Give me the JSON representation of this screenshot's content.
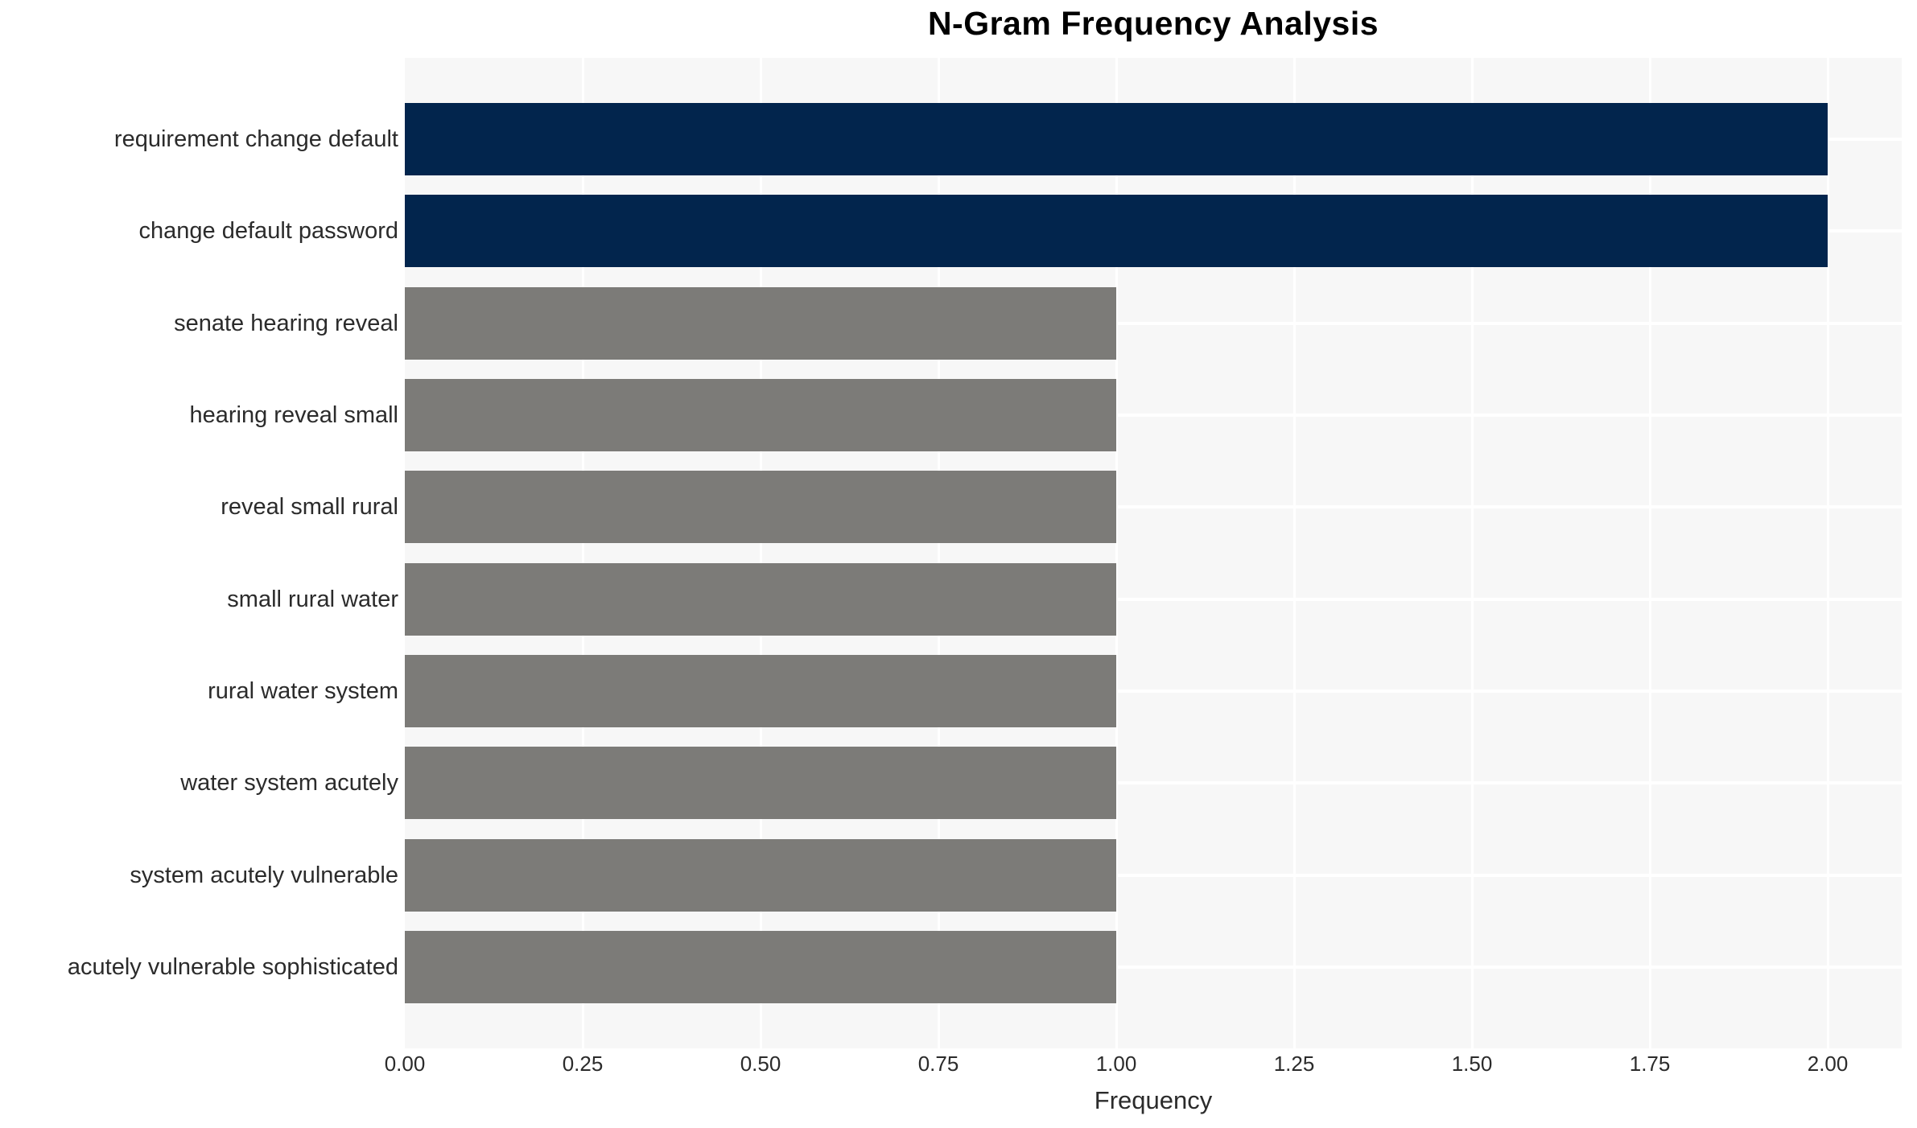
{
  "chart_data": {
    "type": "bar",
    "orientation": "horizontal",
    "title": "N-Gram Frequency Analysis",
    "xlabel": "Frequency",
    "ylabel": "",
    "categories": [
      "requirement change default",
      "change default password",
      "senate hearing reveal",
      "hearing reveal small",
      "reveal small rural",
      "small rural water",
      "rural water system",
      "water system acutely",
      "system acutely vulnerable",
      "acutely vulnerable sophisticated"
    ],
    "values": [
      2,
      2,
      1,
      1,
      1,
      1,
      1,
      1,
      1,
      1
    ],
    "bar_colors": [
      "#02254d",
      "#02254d",
      "#7c7b78",
      "#7c7b78",
      "#7c7b78",
      "#7c7b78",
      "#7c7b78",
      "#7c7b78",
      "#7c7b78",
      "#7c7b78"
    ],
    "xticks": [
      0,
      0.25,
      0.5,
      0.75,
      1.0,
      1.25,
      1.5,
      1.75,
      2.0
    ],
    "xtick_labels": [
      "0.00",
      "0.25",
      "0.50",
      "0.75",
      "1.00",
      "1.25",
      "1.50",
      "1.75",
      "2.00"
    ],
    "xlim": [
      0,
      2.104
    ],
    "grid": true,
    "legend": "none",
    "plot_background": "#f7f7f7",
    "gridline_color": "#ffffff",
    "highlight_color": "#02254d",
    "base_color": "#7c7b78",
    "text_color": "#2b2b2b",
    "title_color": "#000000"
  }
}
